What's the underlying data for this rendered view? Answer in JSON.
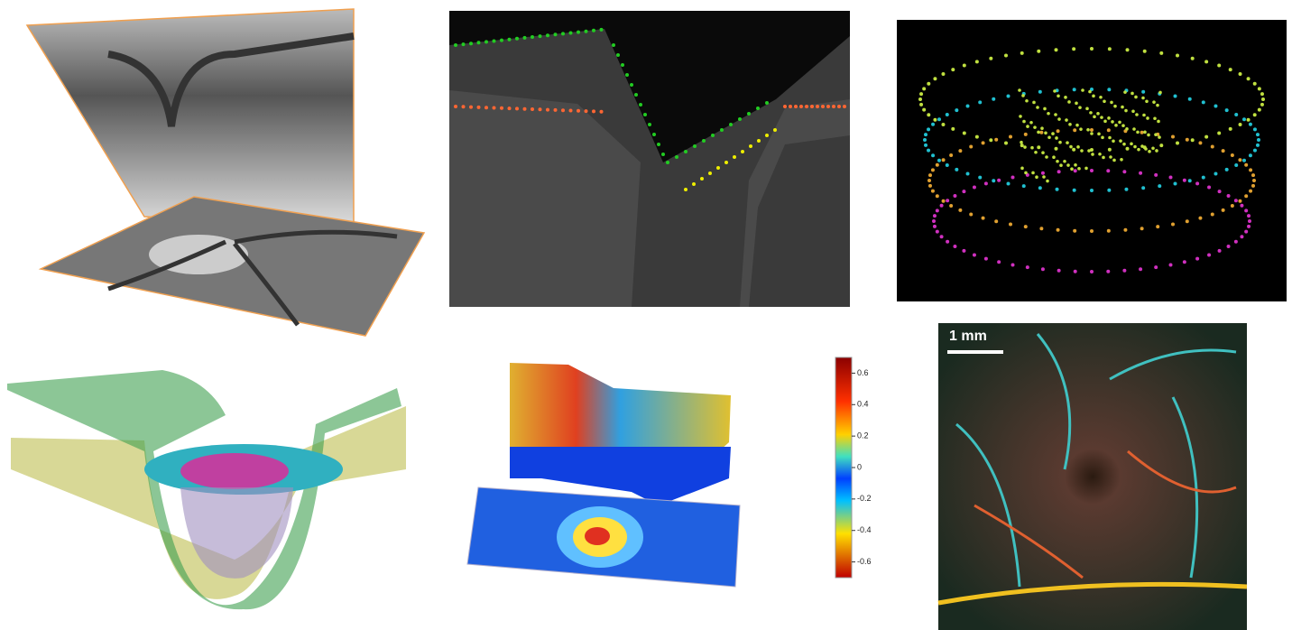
{
  "colorbar": {
    "lim": [
      -0.7,
      0.7
    ],
    "ticks": [
      0.6,
      0.4,
      0.2,
      0,
      -0.2,
      -0.4,
      -0.6
    ]
  },
  "scale_bar": {
    "label": "1 mm"
  }
}
